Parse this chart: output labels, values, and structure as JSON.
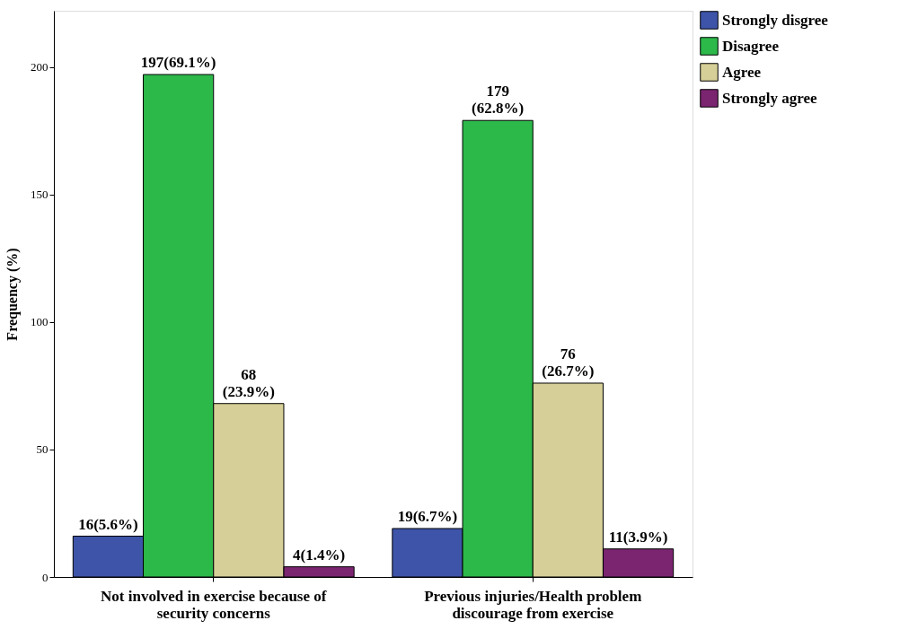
{
  "chart_data": {
    "type": "bar",
    "ylabel": "Frequency (%)",
    "categories": [
      "Not involved in exercise because of\nsecurity concerns",
      "Previous injuries/Health problem\ndiscourage from exercise"
    ],
    "series": [
      {
        "name": "Strongly disgree",
        "color": "#3e54a8",
        "values": [
          16,
          19
        ],
        "value_labels": [
          "16(5.6%)",
          "19(6.7%)"
        ]
      },
      {
        "name": "Disagree",
        "color": "#2db84a",
        "values": [
          197,
          179
        ],
        "value_labels": [
          "197(69.1%)",
          "179\n(62.8%)"
        ]
      },
      {
        "name": "Agree",
        "color": "#d6cf97",
        "values": [
          68,
          76
        ],
        "value_labels": [
          "68\n(23.9%)",
          "76\n(26.7%)"
        ]
      },
      {
        "name": "Strongly agree",
        "color": "#7b2470",
        "values": [
          4,
          11
        ],
        "value_labels": [
          "4(1.4%)",
          "11(3.9%)"
        ]
      }
    ],
    "ylim": [
      0,
      222
    ],
    "yticks": [
      0,
      50,
      100,
      150,
      200
    ],
    "grid": false,
    "legend": "top right"
  }
}
